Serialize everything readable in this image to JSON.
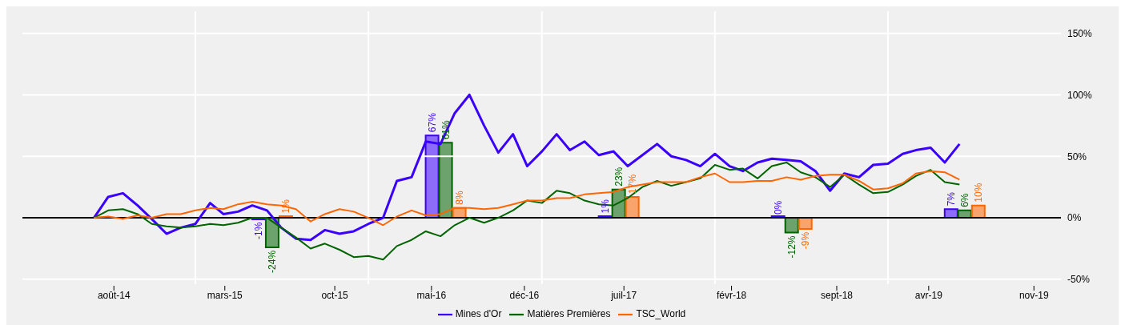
{
  "chart_data": {
    "type": "line",
    "xlim": [
      "2014-01-01",
      "2020-01-01"
    ],
    "ylim": [
      -54,
      168
    ],
    "xticks": [
      {
        "value": "2014-07-13",
        "label": "août-14"
      },
      {
        "value": "2015-01-01",
        "label": null
      },
      {
        "value": "2015-03-04",
        "label": "mars-15"
      },
      {
        "value": "2015-10-22",
        "label": "oct-15"
      },
      {
        "value": "2016-01-01",
        "label": null
      },
      {
        "value": "2016-05-13",
        "label": "mai-16"
      },
      {
        "value": "2016-11-25",
        "label": "déc-16"
      },
      {
        "value": "2017-01-01",
        "label": null
      },
      {
        "value": "2017-06-23",
        "label": "juil-17"
      },
      {
        "value": "2018-01-01",
        "label": null
      },
      {
        "value": "2018-02-05",
        "label": "févr-18"
      },
      {
        "value": "2018-09-15",
        "label": "sept-18"
      },
      {
        "value": "2019-01-01",
        "label": null
      },
      {
        "value": "2019-03-28",
        "label": "avr-19"
      },
      {
        "value": "2019-11-05",
        "label": "nov-19"
      }
    ],
    "yticks": [
      {
        "value": -50,
        "label": "-50%"
      },
      {
        "value": 0,
        "label": "0%"
      },
      {
        "value": 50,
        "label": "50%"
      },
      {
        "value": 100,
        "label": "100%"
      },
      {
        "value": 150,
        "label": "150%"
      }
    ],
    "grid": true,
    "legend": "bottom",
    "ref_lines": [
      {
        "axis": "y",
        "value": 0,
        "color": "#000000"
      }
    ],
    "x": [
      "2014-06-01",
      "2014-07-01",
      "2014-08-01",
      "2014-09-01",
      "2014-10-01",
      "2014-11-01",
      "2014-12-01",
      "2015-01-01",
      "2015-02-01",
      "2015-03-01",
      "2015-04-01",
      "2015-05-01",
      "2015-06-01",
      "2015-07-01",
      "2015-08-01",
      "2015-09-01",
      "2015-10-01",
      "2015-11-01",
      "2015-12-01",
      "2016-01-01",
      "2016-02-01",
      "2016-03-01",
      "2016-04-01",
      "2016-05-01",
      "2016-06-01",
      "2016-07-01",
      "2016-08-01",
      "2016-09-01",
      "2016-10-01",
      "2016-11-01",
      "2016-12-01",
      "2017-01-01",
      "2017-02-01",
      "2017-03-01",
      "2017-04-01",
      "2017-05-01",
      "2017-06-01",
      "2017-07-01",
      "2017-08-01",
      "2017-09-01",
      "2017-10-01",
      "2017-11-01",
      "2017-12-01",
      "2018-01-01",
      "2018-02-01",
      "2018-03-01",
      "2018-04-01",
      "2018-05-01",
      "2018-06-01",
      "2018-07-01",
      "2018-08-01",
      "2018-09-01",
      "2018-10-01",
      "2018-11-01",
      "2018-12-01",
      "2019-01-01",
      "2019-02-01",
      "2019-03-01",
      "2019-04-01",
      "2019-05-01",
      "2019-06-01"
    ],
    "series": [
      {
        "name": "Mines d'Or",
        "color": "#3a00ff",
        "values": [
          0,
          17,
          20,
          10,
          -1,
          -13,
          -8,
          -5,
          12,
          3,
          5,
          10,
          6,
          -8,
          -17,
          -18,
          -10,
          -13,
          -11,
          -5,
          0,
          30,
          33,
          62,
          60,
          85,
          100,
          75,
          53,
          68,
          42,
          54,
          68,
          55,
          62,
          51,
          54,
          42,
          51,
          60,
          50,
          47,
          42,
          52,
          42,
          38,
          45,
          48,
          47,
          46,
          38,
          22,
          36,
          33,
          43,
          44,
          52,
          55,
          57,
          45,
          60
        ]
      },
      {
        "name": "Matières Premières",
        "color": "#006400",
        "values": [
          0,
          6,
          7,
          3,
          -5,
          -7,
          -8,
          -7,
          -5,
          -6,
          -4,
          0,
          0,
          -8,
          -16,
          -25,
          -21,
          -26,
          -32,
          -31,
          -34,
          -23,
          -18,
          -11,
          -15,
          -6,
          0,
          -4,
          0,
          6,
          14,
          12,
          22,
          20,
          14,
          11,
          10,
          16,
          25,
          30,
          26,
          29,
          32,
          43,
          39,
          40,
          32,
          42,
          45,
          37,
          33,
          25,
          35,
          27,
          20,
          21,
          27,
          34,
          39,
          29,
          27
        ]
      },
      {
        "name": "TSC_World",
        "color": "#ff6600",
        "values": [
          0,
          1,
          -1,
          2,
          0,
          3,
          3,
          6,
          8,
          7,
          11,
          13,
          11,
          10,
          7,
          -3,
          3,
          7,
          5,
          0,
          -6,
          1,
          6,
          2,
          3,
          8,
          8,
          7,
          8,
          11,
          14,
          14,
          16,
          16,
          19,
          20,
          21,
          25,
          27,
          29,
          29,
          29,
          33,
          36,
          29,
          29,
          30,
          30,
          33,
          31,
          34,
          35,
          35,
          30,
          23,
          24,
          28,
          36,
          38,
          37,
          31
        ]
      },
      {
        "type": "bar",
        "color": "#3a00ff",
        "x": [
          "2015-06-12",
          "2016-06-12",
          "2017-06-12",
          "2018-06-12",
          "2019-06-12"
        ],
        "values": [
          -1,
          67,
          1,
          0,
          7
        ],
        "value_labels": [
          "-1%",
          "67%",
          "1%",
          "0%",
          "7%"
        ]
      },
      {
        "type": "bar",
        "color": "#006400",
        "x": [
          "2015-06-12",
          "2016-06-12",
          "2017-06-12",
          "2018-06-12",
          "2019-06-12"
        ],
        "values": [
          -24,
          61,
          23,
          -12,
          6
        ],
        "value_labels": [
          "-24%",
          "61%",
          "23%",
          "-12%",
          "6%"
        ]
      },
      {
        "type": "bar",
        "color": "#ff6600",
        "x": [
          "2015-06-12",
          "2016-06-12",
          "2017-06-12",
          "2018-06-12",
          "2019-06-12"
        ],
        "values": [
          1,
          8,
          17,
          -9,
          10
        ],
        "value_labels": [
          "1%",
          "8%",
          "17%",
          "-9%",
          "10%"
        ]
      }
    ]
  }
}
